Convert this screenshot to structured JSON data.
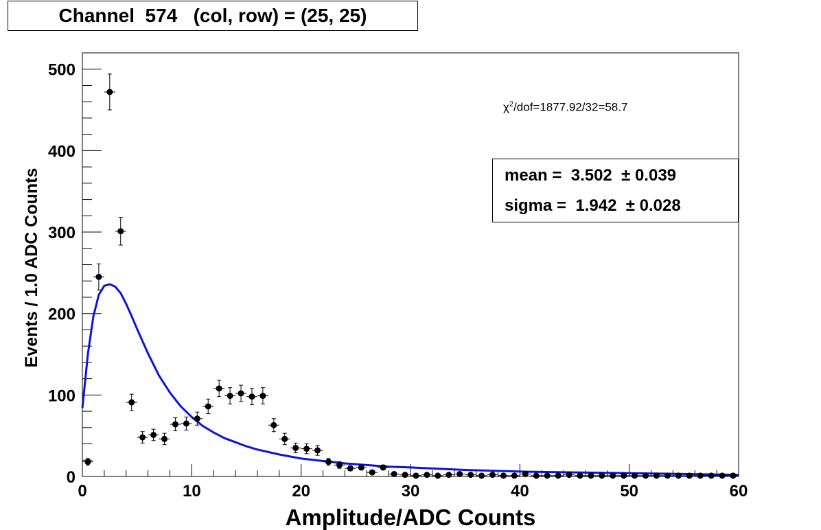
{
  "title": "Channel  574   (col, row) = (25, 25)",
  "chi2": {
    "prefix": "χ",
    "sup": "2",
    "text": "/dof=1877.92/32=58.7"
  },
  "stats": {
    "mean_label": "mean =  3.502  ± 0.039",
    "sigma_label": "sigma =  1.942  ± 0.028"
  },
  "chart_data": {
    "type": "scatter",
    "xlabel": "Amplitude/ADC Counts",
    "ylabel": "Events / 1.0 ADC Counts",
    "xlim": [
      0,
      60
    ],
    "ylim": [
      0,
      520
    ],
    "xticks": [
      0,
      10,
      20,
      30,
      40,
      50,
      60
    ],
    "yticks": [
      0,
      100,
      200,
      300,
      400,
      500
    ],
    "grid": false,
    "points_color": "#000000",
    "fit_color": "#0a14d8",
    "series": [
      {
        "kind": "points",
        "x": [
          0.5,
          1.5,
          2.5,
          3.5,
          4.5,
          5.5,
          6.5,
          7.5,
          8.5,
          9.5,
          10.5,
          11.5,
          12.5,
          13.5,
          14.5,
          15.5,
          16.5,
          17.5,
          18.5,
          19.5,
          20.5,
          21.5,
          22.5,
          23.5,
          24.5,
          25.5,
          26.5,
          27.5,
          28.5,
          29.5,
          30.5,
          31.5,
          32.5,
          33.5,
          34.5,
          35.5,
          36.5,
          37.5,
          38.5,
          39.5,
          40.5,
          41.5,
          42.5,
          43.5,
          44.5,
          45.5,
          46.5,
          47.5,
          48.5,
          49.5,
          50.5,
          51.5,
          52.5,
          53.5,
          54.5,
          55.5,
          56.5,
          57.5,
          58.5,
          59.5
        ],
        "y": [
          18,
          245,
          472,
          301,
          91,
          48,
          51,
          46,
          64,
          65,
          71,
          86,
          108,
          99,
          102,
          98,
          99,
          63,
          46,
          35,
          34,
          32,
          18,
          14,
          10,
          11,
          5,
          11,
          3,
          2,
          1,
          2,
          1,
          2,
          3,
          2,
          1,
          2,
          1,
          1,
          3,
          1,
          1,
          1,
          2,
          1,
          1,
          1,
          1,
          1,
          1,
          1,
          1,
          1,
          1,
          1,
          1,
          1,
          1,
          1
        ],
        "yerr": [
          4,
          16,
          22,
          17,
          10,
          7,
          7,
          7,
          8,
          8,
          8,
          9,
          10,
          10,
          10,
          10,
          10,
          8,
          7,
          6,
          6,
          6,
          4,
          4,
          3,
          3,
          2,
          3,
          2,
          1,
          1,
          1,
          1,
          1,
          2,
          1,
          1,
          1,
          1,
          1,
          2,
          1,
          1,
          1,
          1,
          1,
          1,
          1,
          1,
          1,
          1,
          1,
          1,
          1,
          1,
          1,
          1,
          1,
          1,
          1
        ]
      },
      {
        "kind": "fit",
        "x": [
          0,
          0.5,
          1,
          1.5,
          2,
          2.5,
          3,
          3.5,
          4,
          4.5,
          5,
          5.5,
          6,
          7,
          8,
          9,
          10,
          11,
          12,
          13,
          14,
          15,
          16,
          17,
          18,
          20,
          22,
          24,
          26,
          28,
          30,
          35,
          40,
          45,
          50,
          55,
          60
        ],
        "y": [
          84,
          150,
          196,
          223,
          234,
          236,
          233,
          225,
          212,
          197,
          181,
          166,
          151,
          124,
          103,
          86,
          73,
          62,
          54,
          47,
          42,
          37,
          33,
          30,
          27,
          22,
          19,
          16,
          14,
          12,
          11,
          8,
          6,
          5,
          4,
          3,
          2
        ]
      }
    ]
  }
}
